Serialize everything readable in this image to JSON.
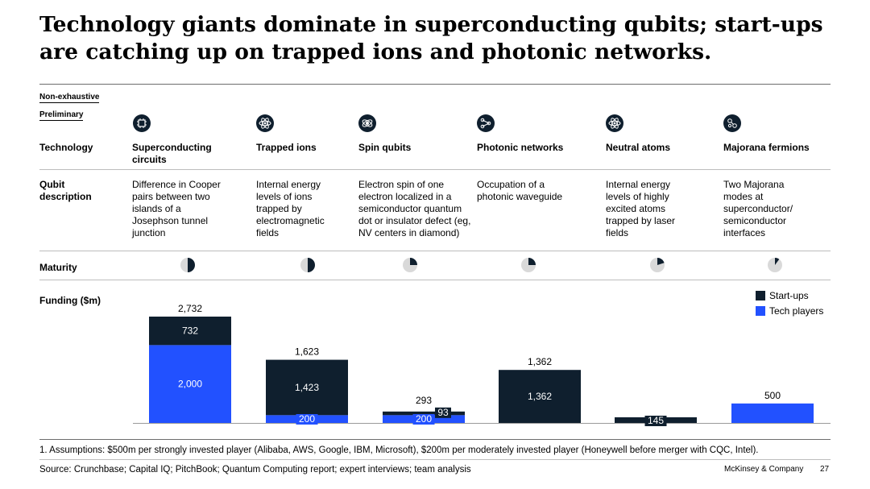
{
  "title": "Technology giants dominate in superconducting qubits; start-ups are catching up on trapped ions and photonic networks.",
  "tags": {
    "non_exhaustive": "Non-exhaustive",
    "preliminary": "Preliminary"
  },
  "row_labels": {
    "technology": "Technology",
    "qubit": "Qubit description",
    "maturity": "Maturity",
    "funding": "Funding ($m)"
  },
  "columns": [
    {
      "name": "Superconducting circuits",
      "icon": "chip-icon",
      "description": "Difference in Cooper pairs between two islands of a Josephson tunnel junction",
      "maturity": 0.5
    },
    {
      "name": "Trapped ions",
      "icon": "atom-icon",
      "description": "Internal energy levels of ions trapped by electromagnetic fields",
      "maturity": 0.5
    },
    {
      "name": "Spin qubits",
      "icon": "spin-icon",
      "description": "Electron spin of one electron localized in a semiconductor quantum dot or insulator defect (eg, NV centers in diamond)",
      "maturity": 0.25
    },
    {
      "name": "Photonic networks",
      "icon": "photonic-network-icon",
      "description": "Occupation of a photonic waveguide",
      "maturity": 0.25
    },
    {
      "name": "Neutral atoms",
      "icon": "atom-icon",
      "description": "Internal energy levels of highly excited atoms trapped by laser fields",
      "maturity": 0.2
    },
    {
      "name": "Majorana fermions",
      "icon": "majorana-icon",
      "description": "Two Majorana modes at superconductor/ semiconductor interfaces",
      "maturity": 0.1
    }
  ],
  "colors": {
    "startups": "#0f1f2e",
    "tech": "#2251ff",
    "ring": "#d9d9d9"
  },
  "chart_data": {
    "type": "bar",
    "stacked": true,
    "categories": [
      "Superconducting circuits",
      "Trapped ions",
      "Spin qubits",
      "Photonic networks",
      "Neutral atoms",
      "Majorana fermions"
    ],
    "series": [
      {
        "name": "Tech players",
        "values": [
          2000,
          200,
          200,
          0,
          0,
          500
        ]
      },
      {
        "name": "Start-ups",
        "values": [
          732,
          1423,
          93,
          1362,
          145,
          0
        ]
      }
    ],
    "totals": [
      2732,
      1623,
      293,
      1362,
      145,
      500
    ],
    "total_labels": [
      "2,732",
      "1,623",
      "293",
      "1,362",
      "",
      "500"
    ],
    "segment_labels": {
      "tech": [
        "2,000",
        "200",
        "200",
        "",
        "",
        ""
      ],
      "startups": [
        "732",
        "1,423",
        "93",
        "1,362",
        "145",
        ""
      ]
    },
    "legend": [
      "Start-ups",
      "Tech players"
    ],
    "legend_position": "top-right",
    "ylim": [
      0,
      2732
    ]
  },
  "footnote": "1. Assumptions: $500m per strongly invested player (Alibaba, AWS, Google, IBM, Microsoft), $200m per moderately invested player (Honeywell before merger with CQC, Intel).",
  "source": "Source: Crunchbase; Capital IQ; PitchBook; Quantum Computing report; expert interviews; team analysis",
  "brand": "McKinsey & Company",
  "page": "27"
}
